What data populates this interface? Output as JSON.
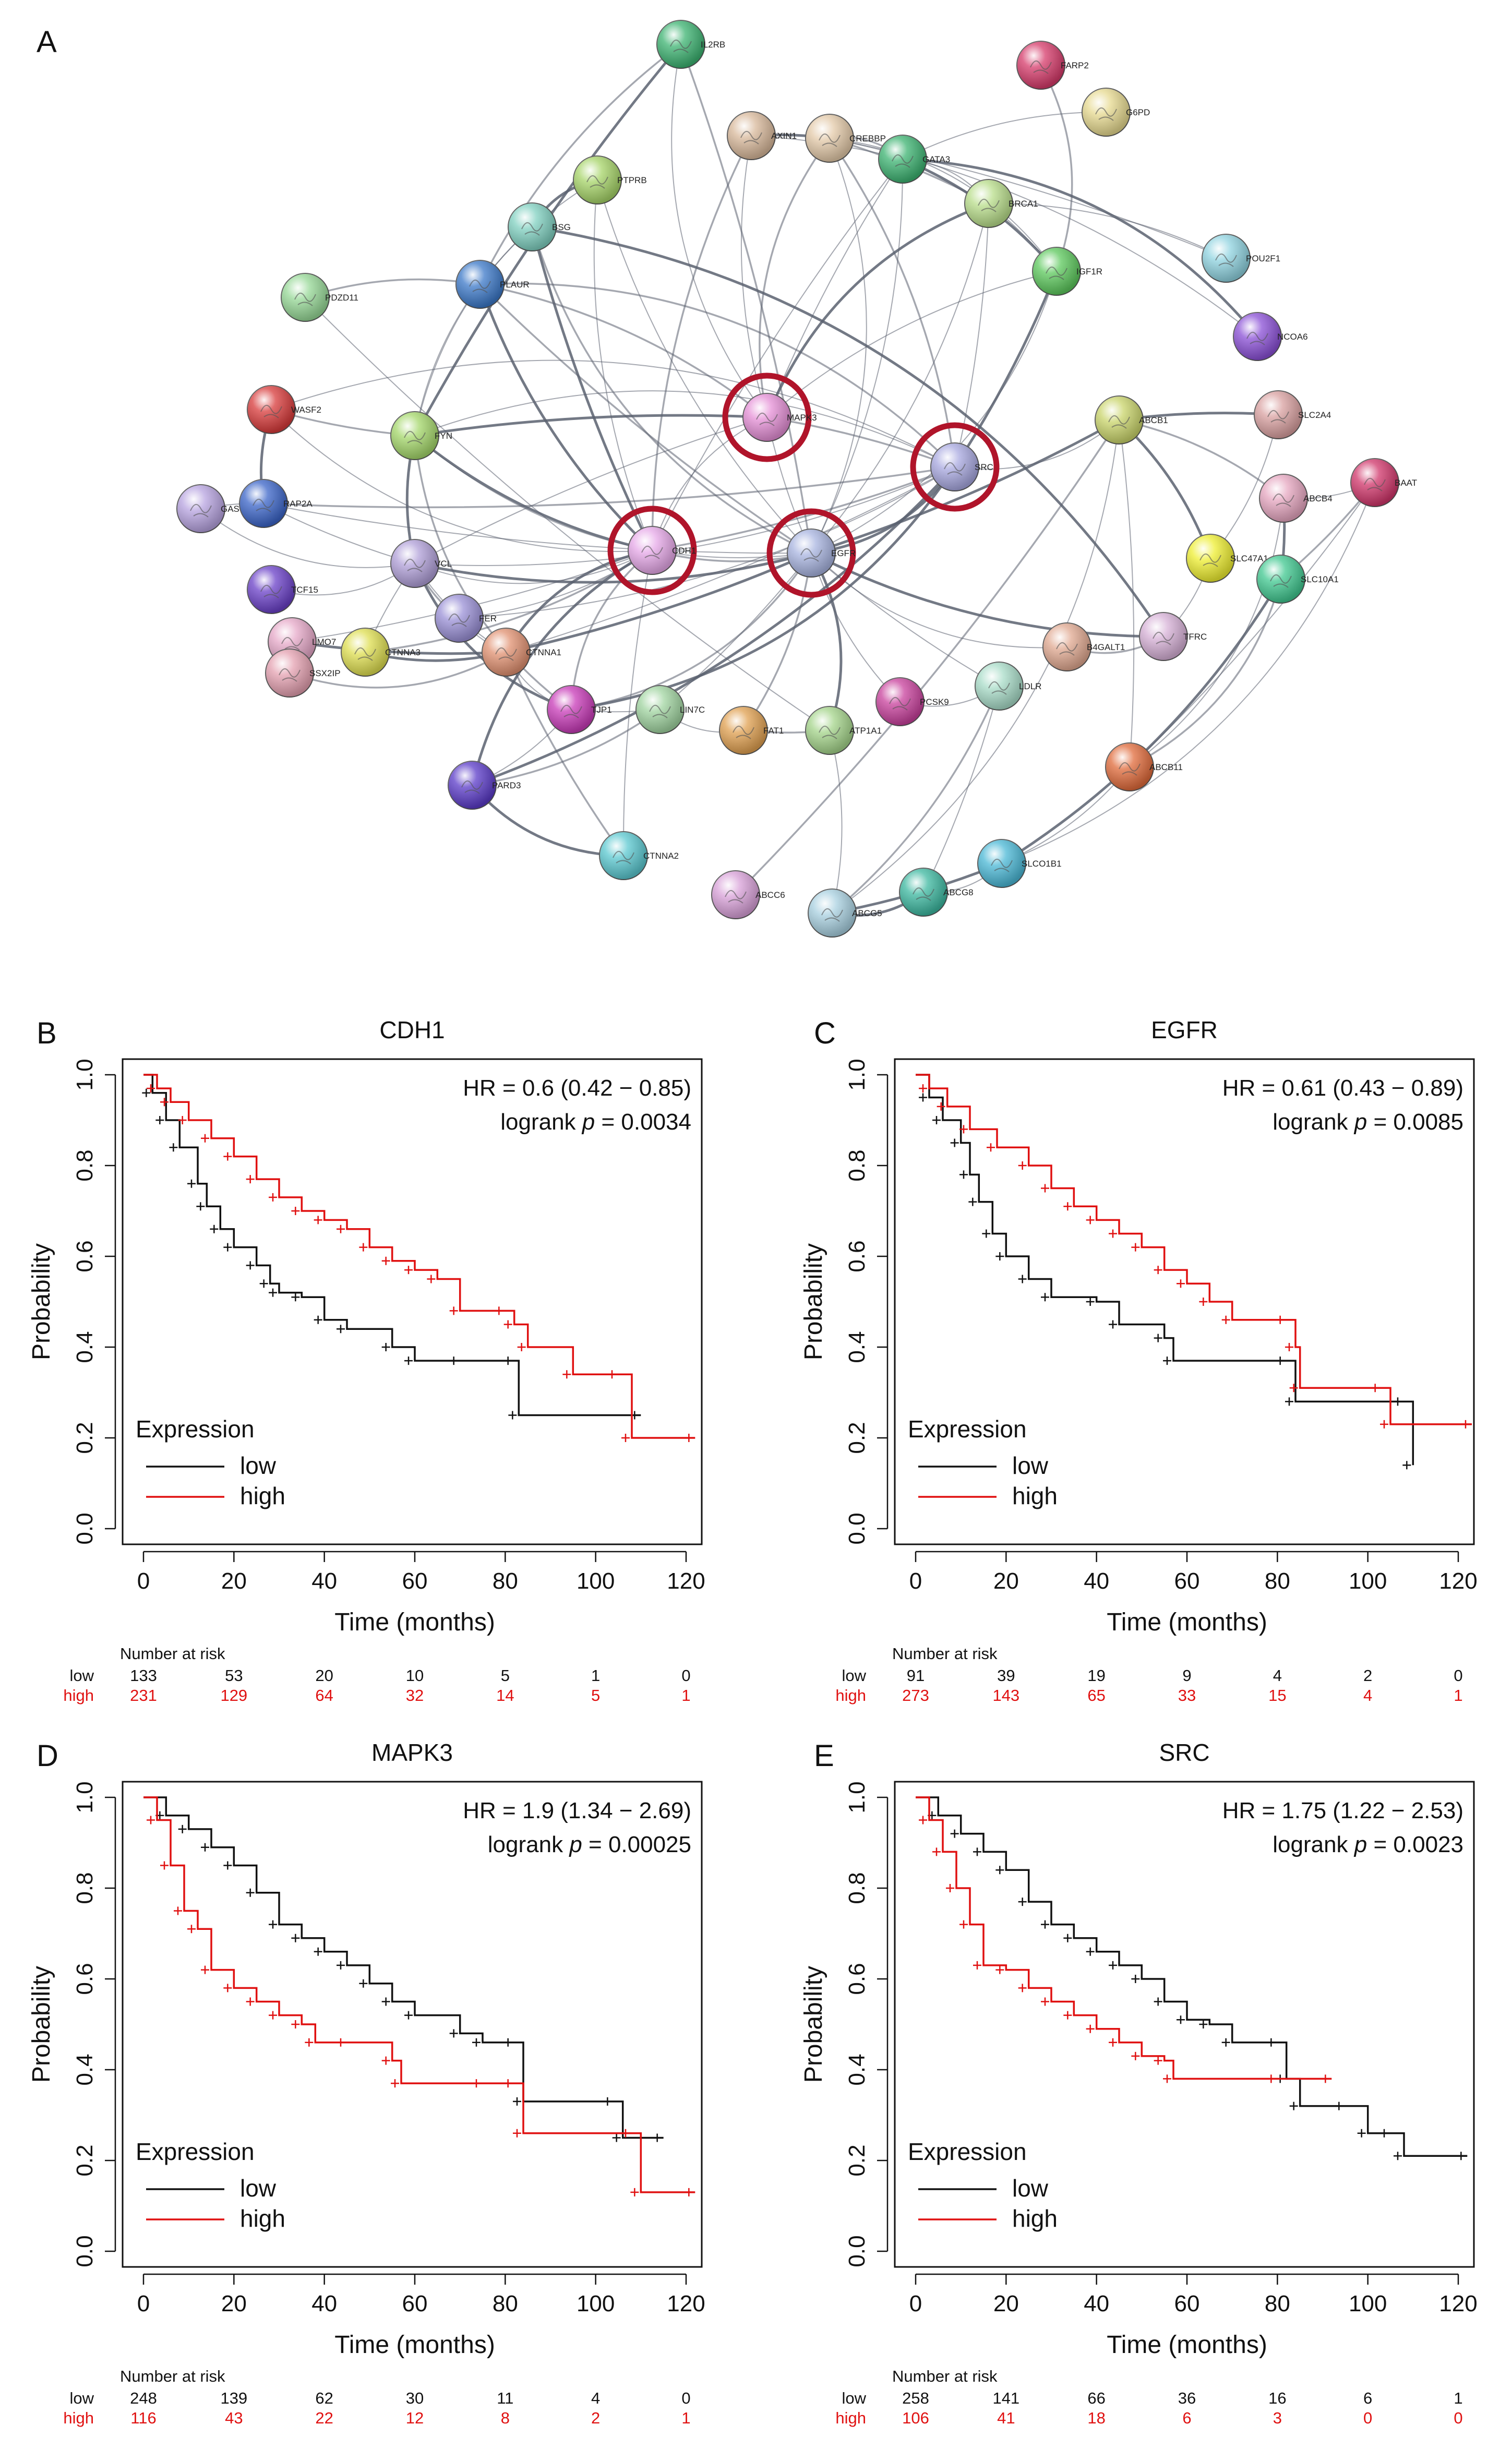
{
  "colors": {
    "low": "#111111",
    "high": "#e01010",
    "ring": "#b0142a",
    "edge": "#5b6170"
  },
  "panel_labels": [
    "A",
    "B",
    "C",
    "D",
    "E"
  ],
  "network": {
    "label": "A",
    "highlighted": [
      "MAPK3",
      "SRC",
      "CDH1",
      "EGFR"
    ],
    "nodes": [
      {
        "id": "IL2RB",
        "color": "#3cb371"
      },
      {
        "id": "FARP2",
        "color": "#d63a6a"
      },
      {
        "id": "G6PD",
        "color": "#e6d98f"
      },
      {
        "id": "AXIN1",
        "color": "#d8b89a"
      },
      {
        "id": "CREBBP",
        "color": "#e3c9a8"
      },
      {
        "id": "GATA3",
        "color": "#3cb371"
      },
      {
        "id": "PTPRB",
        "color": "#a6d468"
      },
      {
        "id": "BRCA1",
        "color": "#b8dd8a"
      },
      {
        "id": "BSG",
        "color": "#7fd0c0"
      },
      {
        "id": "IGF1R",
        "color": "#5cc85c"
      },
      {
        "id": "POU2F1",
        "color": "#8fd3e0"
      },
      {
        "id": "PDZD11",
        "color": "#96d896"
      },
      {
        "id": "PLAUR",
        "color": "#3b78c8"
      },
      {
        "id": "NCOA6",
        "color": "#8a4fd6"
      },
      {
        "id": "WASF2",
        "color": "#d83a3a"
      },
      {
        "id": "MAPK3",
        "color": "#e58fd6"
      },
      {
        "id": "ABCB1",
        "color": "#c9d46a"
      },
      {
        "id": "SLC2A4",
        "color": "#d9a0a0"
      },
      {
        "id": "FYN",
        "color": "#a4d76a"
      },
      {
        "id": "SRC",
        "color": "#a8a8e0"
      },
      {
        "id": "GAS7",
        "color": "#b7a3e0"
      },
      {
        "id": "RAP2A",
        "color": "#3a64c8"
      },
      {
        "id": "BAAT",
        "color": "#d0356a"
      },
      {
        "id": "ABCB4",
        "color": "#e6a6c0"
      },
      {
        "id": "CDH1",
        "color": "#e6a8e8"
      },
      {
        "id": "EGFR",
        "color": "#a8b4e0"
      },
      {
        "id": "VCL",
        "color": "#b09fd8"
      },
      {
        "id": "SLC47A1",
        "color": "#eeee30"
      },
      {
        "id": "TCF15",
        "color": "#6a40c8"
      },
      {
        "id": "SLC10A1",
        "color": "#40c890"
      },
      {
        "id": "FER",
        "color": "#9a90d6"
      },
      {
        "id": "LMO7",
        "color": "#e6a8c8"
      },
      {
        "id": "CTNNA3",
        "color": "#dede50"
      },
      {
        "id": "CTNNA1",
        "color": "#e09070"
      },
      {
        "id": "SSX2IP",
        "color": "#e4a0b0"
      },
      {
        "id": "B4GALT1",
        "color": "#e0a890"
      },
      {
        "id": "TFRC",
        "color": "#d6b0d6"
      },
      {
        "id": "TJP1",
        "color": "#c83ab8"
      },
      {
        "id": "LIN7C",
        "color": "#a0d4a0"
      },
      {
        "id": "FAT1",
        "color": "#e0a050"
      },
      {
        "id": "ATP1A1",
        "color": "#a4d48a"
      },
      {
        "id": "PCSK9",
        "color": "#c8409c"
      },
      {
        "id": "LDLR",
        "color": "#a8dcc8"
      },
      {
        "id": "ABCB11",
        "color": "#e06a3a"
      },
      {
        "id": "PARD3",
        "color": "#5a3ac8"
      },
      {
        "id": "CTNNA2",
        "color": "#5ac8d0"
      },
      {
        "id": "SLCO1B1",
        "color": "#4ab8d6"
      },
      {
        "id": "ABCC6",
        "color": "#d8a0d8"
      },
      {
        "id": "ABCG5",
        "color": "#a8d0e0"
      },
      {
        "id": "ABCG8",
        "color": "#3cb8a0"
      }
    ]
  },
  "chart_data": [
    {
      "panel": "B",
      "type": "line",
      "title": "CDH1",
      "hr_text": "HR = 0.6 (0.42 − 0.85)",
      "logrank_prefix": "logrank ",
      "p_symbol": "p",
      "p_text": " = 0.0034",
      "xlabel": "Time (months)",
      "ylabel": "Probability",
      "xlim": [
        0,
        120
      ],
      "ylim": [
        0,
        1
      ],
      "xticks": [
        0,
        20,
        40,
        60,
        80,
        100,
        120
      ],
      "yticks": [
        "0.0",
        "0.2",
        "0.4",
        "0.6",
        "0.8",
        "1.0"
      ],
      "legend_title": "Expression",
      "series": [
        {
          "name": "low",
          "color": "#111111",
          "points": [
            [
              0,
              1
            ],
            [
              2,
              0.96
            ],
            [
              5,
              0.9
            ],
            [
              8,
              0.84
            ],
            [
              12,
              0.76
            ],
            [
              14,
              0.71
            ],
            [
              17,
              0.66
            ],
            [
              20,
              0.62
            ],
            [
              25,
              0.58
            ],
            [
              28,
              0.54
            ],
            [
              30,
              0.52
            ],
            [
              35,
              0.51
            ],
            [
              40,
              0.46
            ],
            [
              45,
              0.44
            ],
            [
              55,
              0.4
            ],
            [
              60,
              0.37
            ],
            [
              70,
              0.37
            ],
            [
              82,
              0.37
            ],
            [
              83,
              0.25
            ],
            [
              110,
              0.25
            ]
          ]
        },
        {
          "name": "high",
          "color": "#e01010",
          "points": [
            [
              0,
              1
            ],
            [
              3,
              0.97
            ],
            [
              6,
              0.94
            ],
            [
              10,
              0.9
            ],
            [
              15,
              0.86
            ],
            [
              20,
              0.82
            ],
            [
              25,
              0.77
            ],
            [
              30,
              0.73
            ],
            [
              35,
              0.7
            ],
            [
              40,
              0.68
            ],
            [
              45,
              0.66
            ],
            [
              50,
              0.62
            ],
            [
              55,
              0.59
            ],
            [
              60,
              0.57
            ],
            [
              65,
              0.55
            ],
            [
              70,
              0.48
            ],
            [
              80,
              0.48
            ],
            [
              82,
              0.45
            ],
            [
              85,
              0.4
            ],
            [
              95,
              0.34
            ],
            [
              105,
              0.34
            ],
            [
              108,
              0.2
            ],
            [
              122,
              0.2
            ]
          ]
        }
      ],
      "risk": {
        "header": "Number at risk",
        "low": [
          "133",
          "53",
          "20",
          "10",
          "5",
          "1",
          "0"
        ],
        "high": [
          "231",
          "129",
          "64",
          "32",
          "14",
          "5",
          "1"
        ]
      }
    },
    {
      "panel": "C",
      "type": "line",
      "title": "EGFR",
      "hr_text": "HR = 0.61 (0.43 − 0.89)",
      "logrank_prefix": "logrank ",
      "p_symbol": "p",
      "p_text": " = 0.0085",
      "xlabel": "Time (months)",
      "ylabel": "Probability",
      "xlim": [
        0,
        120
      ],
      "ylim": [
        0,
        1
      ],
      "xticks": [
        0,
        20,
        40,
        60,
        80,
        100,
        120
      ],
      "yticks": [
        "0.0",
        "0.2",
        "0.4",
        "0.6",
        "0.8",
        "1.0"
      ],
      "legend_title": "Expression",
      "series": [
        {
          "name": "low",
          "color": "#111111",
          "points": [
            [
              0,
              1
            ],
            [
              3,
              0.95
            ],
            [
              6,
              0.9
            ],
            [
              10,
              0.85
            ],
            [
              12,
              0.78
            ],
            [
              14,
              0.72
            ],
            [
              17,
              0.65
            ],
            [
              20,
              0.6
            ],
            [
              25,
              0.55
            ],
            [
              30,
              0.51
            ],
            [
              40,
              0.5
            ],
            [
              45,
              0.45
            ],
            [
              55,
              0.42
            ],
            [
              57,
              0.37
            ],
            [
              82,
              0.37
            ],
            [
              84,
              0.28
            ],
            [
              108,
              0.28
            ],
            [
              110,
              0.14
            ]
          ]
        },
        {
          "name": "high",
          "color": "#e01010",
          "points": [
            [
              0,
              1
            ],
            [
              3,
              0.97
            ],
            [
              7,
              0.93
            ],
            [
              12,
              0.88
            ],
            [
              18,
              0.84
            ],
            [
              25,
              0.8
            ],
            [
              30,
              0.75
            ],
            [
              35,
              0.71
            ],
            [
              40,
              0.68
            ],
            [
              45,
              0.65
            ],
            [
              50,
              0.62
            ],
            [
              55,
              0.57
            ],
            [
              60,
              0.54
            ],
            [
              65,
              0.5
            ],
            [
              70,
              0.46
            ],
            [
              82,
              0.46
            ],
            [
              84,
              0.4
            ],
            [
              85,
              0.31
            ],
            [
              103,
              0.31
            ],
            [
              105,
              0.23
            ],
            [
              123,
              0.23
            ]
          ]
        }
      ],
      "risk": {
        "header": "Number at risk",
        "low": [
          "91",
          "39",
          "19",
          "9",
          "4",
          "2",
          "0"
        ],
        "high": [
          "273",
          "143",
          "65",
          "33",
          "15",
          "4",
          "1"
        ]
      }
    },
    {
      "panel": "D",
      "type": "line",
      "title": "MAPK3",
      "hr_text": "HR = 1.9 (1.34 − 2.69)",
      "logrank_prefix": "logrank ",
      "p_symbol": "p",
      "p_text": " = 0.00025",
      "xlabel": "Time (months)",
      "ylabel": "Probability",
      "xlim": [
        0,
        120
      ],
      "ylim": [
        0,
        1
      ],
      "xticks": [
        0,
        20,
        40,
        60,
        80,
        100,
        120
      ],
      "yticks": [
        "0.0",
        "0.2",
        "0.4",
        "0.6",
        "0.8",
        "1.0"
      ],
      "legend_title": "Expression",
      "series": [
        {
          "name": "low",
          "color": "#111111",
          "points": [
            [
              0,
              1
            ],
            [
              5,
              0.96
            ],
            [
              10,
              0.93
            ],
            [
              15,
              0.89
            ],
            [
              20,
              0.85
            ],
            [
              25,
              0.79
            ],
            [
              30,
              0.72
            ],
            [
              35,
              0.69
            ],
            [
              40,
              0.66
            ],
            [
              45,
              0.63
            ],
            [
              50,
              0.59
            ],
            [
              55,
              0.55
            ],
            [
              60,
              0.52
            ],
            [
              70,
              0.48
            ],
            [
              75,
              0.46
            ],
            [
              82,
              0.46
            ],
            [
              84,
              0.33
            ],
            [
              104,
              0.33
            ],
            [
              106,
              0.25
            ],
            [
              115,
              0.25
            ]
          ]
        },
        {
          "name": "high",
          "color": "#e01010",
          "points": [
            [
              0,
              1
            ],
            [
              3,
              0.95
            ],
            [
              6,
              0.85
            ],
            [
              9,
              0.75
            ],
            [
              12,
              0.71
            ],
            [
              15,
              0.62
            ],
            [
              20,
              0.58
            ],
            [
              25,
              0.55
            ],
            [
              30,
              0.52
            ],
            [
              35,
              0.5
            ],
            [
              38,
              0.46
            ],
            [
              45,
              0.46
            ],
            [
              55,
              0.42
            ],
            [
              57,
              0.37
            ],
            [
              75,
              0.37
            ],
            [
              82,
              0.37
            ],
            [
              84,
              0.26
            ],
            [
              108,
              0.26
            ],
            [
              110,
              0.13
            ],
            [
              122,
              0.13
            ]
          ]
        }
      ],
      "risk": {
        "header": "Number at risk",
        "low": [
          "248",
          "139",
          "62",
          "30",
          "11",
          "4",
          "0"
        ],
        "high": [
          "116",
          "43",
          "22",
          "12",
          "8",
          "2",
          "1"
        ]
      }
    },
    {
      "panel": "E",
      "type": "line",
      "title": "SRC",
      "hr_text": "HR = 1.75 (1.22 − 2.53)",
      "logrank_prefix": "logrank ",
      "p_symbol": "p",
      "p_text": " = 0.0023",
      "xlabel": "Time (months)",
      "ylabel": "Probability",
      "xlim": [
        0,
        120
      ],
      "ylim": [
        0,
        1
      ],
      "xticks": [
        0,
        20,
        40,
        60,
        80,
        100,
        120
      ],
      "yticks": [
        "0.0",
        "0.2",
        "0.4",
        "0.6",
        "0.8",
        "1.0"
      ],
      "legend_title": "Expression",
      "series": [
        {
          "name": "low",
          "color": "#111111",
          "points": [
            [
              0,
              1
            ],
            [
              5,
              0.96
            ],
            [
              10,
              0.92
            ],
            [
              15,
              0.88
            ],
            [
              20,
              0.84
            ],
            [
              25,
              0.77
            ],
            [
              30,
              0.72
            ],
            [
              35,
              0.69
            ],
            [
              40,
              0.66
            ],
            [
              45,
              0.63
            ],
            [
              50,
              0.6
            ],
            [
              55,
              0.55
            ],
            [
              60,
              0.51
            ],
            [
              65,
              0.5
            ],
            [
              70,
              0.46
            ],
            [
              80,
              0.46
            ],
            [
              82,
              0.38
            ],
            [
              85,
              0.32
            ],
            [
              95,
              0.32
            ],
            [
              100,
              0.26
            ],
            [
              105,
              0.26
            ],
            [
              108,
              0.21
            ],
            [
              122,
              0.21
            ]
          ]
        },
        {
          "name": "high",
          "color": "#e01010",
          "points": [
            [
              0,
              1
            ],
            [
              3,
              0.95
            ],
            [
              6,
              0.88
            ],
            [
              9,
              0.8
            ],
            [
              12,
              0.72
            ],
            [
              15,
              0.63
            ],
            [
              20,
              0.62
            ],
            [
              25,
              0.58
            ],
            [
              30,
              0.55
            ],
            [
              35,
              0.52
            ],
            [
              40,
              0.49
            ],
            [
              45,
              0.46
            ],
            [
              50,
              0.43
            ],
            [
              55,
              0.42
            ],
            [
              57,
              0.38
            ],
            [
              80,
              0.38
            ],
            [
              92,
              0.38
            ]
          ]
        }
      ],
      "risk": {
        "header": "Number at risk",
        "low": [
          "258",
          "141",
          "66",
          "36",
          "16",
          "6",
          "1"
        ],
        "high": [
          "106",
          "41",
          "18",
          "6",
          "3",
          "0",
          "0"
        ]
      }
    }
  ]
}
